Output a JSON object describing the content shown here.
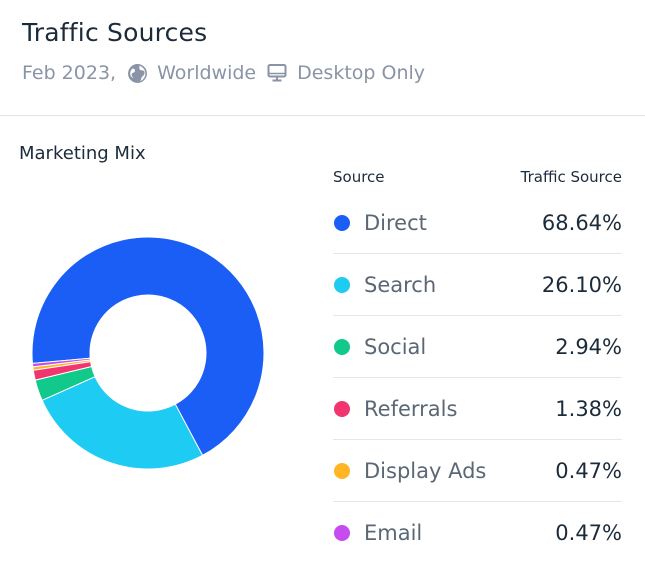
{
  "header": {
    "title": "Traffic Sources",
    "date": "Feb 2023,",
    "location": "Worldwide",
    "device": "Desktop Only"
  },
  "section_title": "Marketing Mix",
  "table": {
    "col_source": "Source",
    "col_traffic": "Traffic Source",
    "rows": [
      {
        "name": "Direct",
        "value": "68.64%",
        "color": "#1b5ef6"
      },
      {
        "name": "Search",
        "value": "26.10%",
        "color": "#1ecbf2"
      },
      {
        "name": "Social",
        "value": "2.94%",
        "color": "#11c98b"
      },
      {
        "name": "Referrals",
        "value": "1.38%",
        "color": "#f2356e"
      },
      {
        "name": "Display Ads",
        "value": "0.47%",
        "color": "#ffb524"
      },
      {
        "name": "Email",
        "value": "0.47%",
        "color": "#c54df0"
      }
    ]
  },
  "chart_data": {
    "type": "pie",
    "categories": [
      "Direct",
      "Search",
      "Social",
      "Referrals",
      "Display Ads",
      "Email"
    ],
    "values": [
      68.64,
      26.1,
      2.94,
      1.38,
      0.47,
      0.47
    ],
    "colors": [
      "#1b5ef6",
      "#1ecbf2",
      "#11c98b",
      "#f2356e",
      "#ffb524",
      "#c54df0"
    ],
    "title": "Marketing Mix",
    "donut": true
  }
}
